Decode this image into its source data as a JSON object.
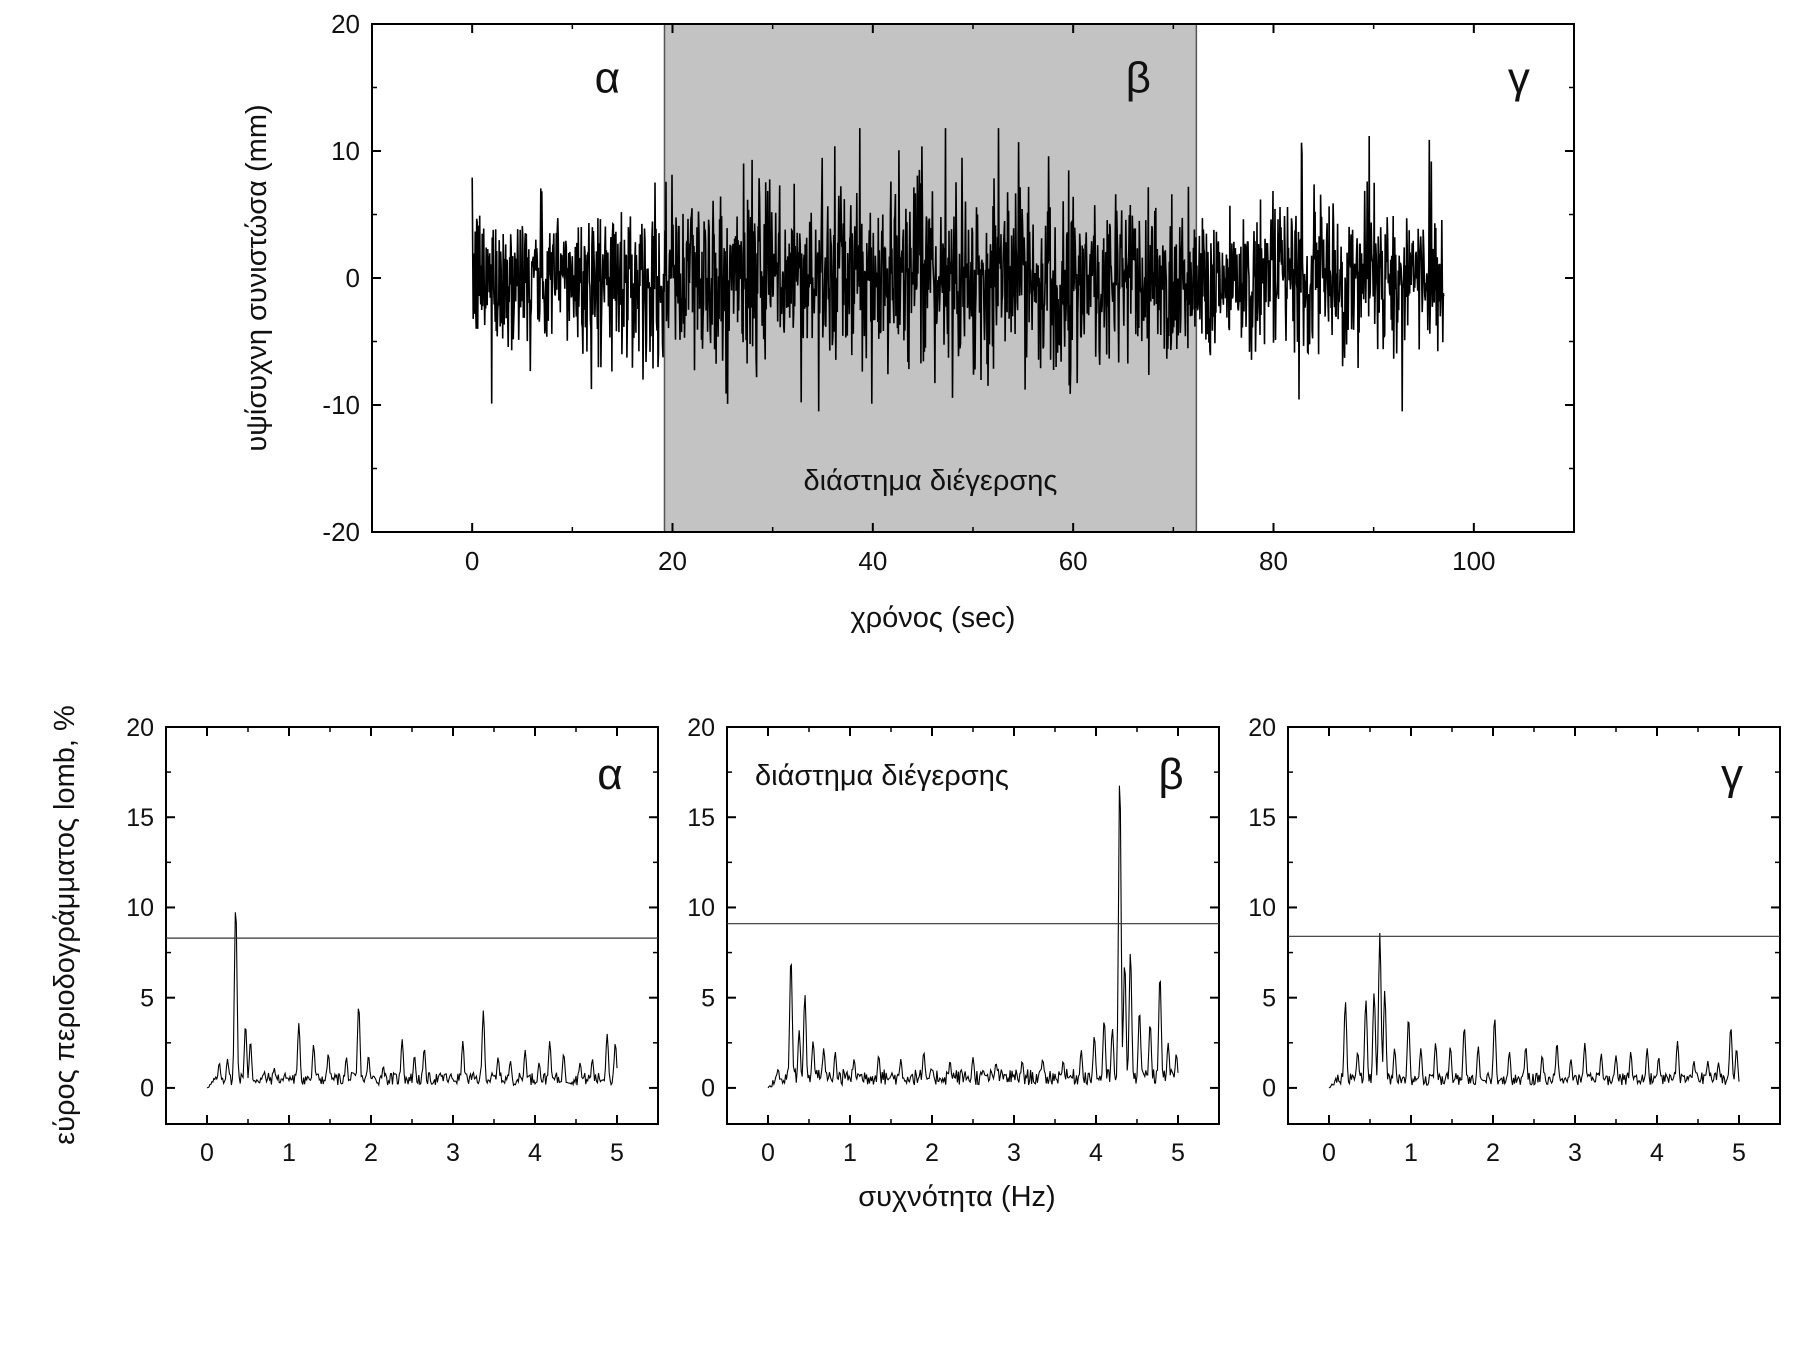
{
  "chart_data": [
    {
      "type": "line",
      "panel": "top",
      "xlabel": "χρόνος (sec)",
      "ylabel": "υψίσυχνη συνιστώσα (mm)",
      "xlim": [
        -10,
        110
      ],
      "ylim": [
        -20,
        20
      ],
      "xticks": [
        0,
        20,
        40,
        60,
        80,
        100
      ],
      "yticks": [
        -20,
        -10,
        0,
        10,
        20
      ],
      "shaded_region": {
        "x": [
          19.2,
          72.3
        ],
        "label": "διάστημα διέγερσης",
        "color": "#c3c3c3"
      },
      "region_labels": [
        {
          "text": "α",
          "x": 13.5,
          "y": 15.7
        },
        {
          "text": "β",
          "x": 66.5,
          "y": 15.7
        },
        {
          "text": "γ",
          "x": 104.5,
          "y": 15.7
        }
      ],
      "signal": {
        "t_start": 0,
        "t_end": 97,
        "typical_amplitude": 3,
        "peaks_max": 11.8,
        "peaks_min": -10.5
      },
      "series_color": "#000000"
    },
    {
      "type": "line",
      "panel": "α",
      "xlim": [
        -0.5,
        5.5
      ],
      "ylim": [
        -2,
        20
      ],
      "xticks": [
        0,
        1,
        2,
        3,
        4,
        5
      ],
      "yticks": [
        0,
        5,
        10,
        15,
        20
      ],
      "threshold": 8.3,
      "label": "α",
      "peaks": [
        [
          0.15,
          1.4
        ],
        [
          0.25,
          1.6
        ],
        [
          0.35,
          10.2
        ],
        [
          0.47,
          3.5
        ],
        [
          0.53,
          2.6
        ],
        [
          0.7,
          0.9
        ],
        [
          0.82,
          1.1
        ],
        [
          0.95,
          0.8
        ],
        [
          1.12,
          3.6
        ],
        [
          1.3,
          2.4
        ],
        [
          1.48,
          1.9
        ],
        [
          1.7,
          1.7
        ],
        [
          1.85,
          4.6
        ],
        [
          1.97,
          1.8
        ],
        [
          2.15,
          1.2
        ],
        [
          2.38,
          2.7
        ],
        [
          2.53,
          1.8
        ],
        [
          2.65,
          2.2
        ],
        [
          2.9,
          0.8
        ],
        [
          3.12,
          2.6
        ],
        [
          3.37,
          4.3
        ],
        [
          3.55,
          1.7
        ],
        [
          3.7,
          1.5
        ],
        [
          3.88,
          2.1
        ],
        [
          4.05,
          1.4
        ],
        [
          4.18,
          2.6
        ],
        [
          4.35,
          1.9
        ],
        [
          4.55,
          1.4
        ],
        [
          4.7,
          1.6
        ],
        [
          4.88,
          3.0
        ],
        [
          4.98,
          2.5
        ]
      ]
    },
    {
      "type": "line",
      "panel": "β",
      "xlim": [
        -0.5,
        5.5
      ],
      "ylim": [
        -2,
        20
      ],
      "xticks": [
        0,
        1,
        2,
        3,
        4,
        5
      ],
      "yticks": [
        0,
        5,
        10,
        15,
        20
      ],
      "threshold": 9.1,
      "label": "β",
      "annotation": "διάστημα διέγερσης",
      "peaks": [
        [
          0.28,
          7.3
        ],
        [
          0.38,
          3.2
        ],
        [
          0.45,
          5.2
        ],
        [
          0.55,
          2.6
        ],
        [
          0.68,
          2.2
        ],
        [
          0.82,
          2.0
        ],
        [
          1.05,
          1.6
        ],
        [
          1.35,
          1.8
        ],
        [
          1.62,
          1.6
        ],
        [
          1.9,
          2.0
        ],
        [
          2.22,
          1.5
        ],
        [
          2.5,
          1.7
        ],
        [
          2.78,
          1.4
        ],
        [
          3.1,
          1.5
        ],
        [
          3.35,
          1.6
        ],
        [
          3.6,
          1.5
        ],
        [
          3.82,
          2.1
        ],
        [
          3.98,
          2.9
        ],
        [
          4.1,
          3.8
        ],
        [
          4.2,
          3.3
        ],
        [
          4.29,
          17.4
        ],
        [
          4.35,
          7.0
        ],
        [
          4.42,
          7.6
        ],
        [
          4.53,
          4.3
        ],
        [
          4.66,
          3.6
        ],
        [
          4.78,
          6.3
        ],
        [
          4.88,
          2.5
        ],
        [
          4.98,
          1.9
        ]
      ]
    },
    {
      "type": "line",
      "panel": "γ",
      "xlim": [
        -0.5,
        5.5
      ],
      "ylim": [
        -2,
        20
      ],
      "xticks": [
        0,
        1,
        2,
        3,
        4,
        5
      ],
      "yticks": [
        0,
        5,
        10,
        15,
        20
      ],
      "threshold": 8.4,
      "label": "γ",
      "peaks": [
        [
          0.2,
          4.8
        ],
        [
          0.35,
          2.0
        ],
        [
          0.45,
          4.9
        ],
        [
          0.55,
          5.3
        ],
        [
          0.62,
          8.6
        ],
        [
          0.68,
          5.4
        ],
        [
          0.8,
          2.2
        ],
        [
          0.97,
          3.9
        ],
        [
          1.12,
          2.2
        ],
        [
          1.3,
          2.5
        ],
        [
          1.48,
          2.3
        ],
        [
          1.65,
          3.4
        ],
        [
          1.82,
          2.3
        ],
        [
          2.02,
          3.9
        ],
        [
          2.2,
          2.0
        ],
        [
          2.4,
          2.3
        ],
        [
          2.6,
          1.8
        ],
        [
          2.78,
          2.5
        ],
        [
          2.95,
          1.6
        ],
        [
          3.12,
          2.5
        ],
        [
          3.32,
          1.9
        ],
        [
          3.5,
          1.8
        ],
        [
          3.68,
          2.0
        ],
        [
          3.88,
          2.2
        ],
        [
          4.02,
          1.7
        ],
        [
          4.25,
          2.6
        ],
        [
          4.45,
          1.5
        ],
        [
          4.62,
          1.5
        ],
        [
          4.75,
          1.4
        ],
        [
          4.9,
          3.4
        ],
        [
          4.97,
          2.2
        ]
      ]
    }
  ],
  "shared": {
    "bottom_xlabel": "συχνότητα (Hz)",
    "bottom_ylabel": "εύρος περιοδογράμματος lomb, %"
  }
}
